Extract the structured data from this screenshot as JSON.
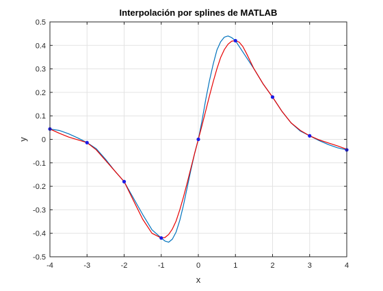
{
  "chart_data": {
    "type": "line",
    "title": "Interpolación por splines de MATLAB",
    "xlabel": "x",
    "ylabel": "y",
    "xlim": [
      -4,
      4
    ],
    "ylim": [
      -0.5,
      0.5
    ],
    "grid": true,
    "x_ticks": [
      -4,
      -3,
      -2,
      -1,
      0,
      1,
      2,
      3,
      4
    ],
    "x_tick_labels": [
      "-4",
      "-3",
      "-2",
      "-1",
      "0",
      "1",
      "2",
      "3",
      "4"
    ],
    "y_ticks": [
      -0.5,
      -0.4,
      -0.3,
      -0.2,
      -0.1,
      0,
      0.1,
      0.2,
      0.3,
      0.4,
      0.5
    ],
    "y_tick_labels": [
      "-0.5",
      "-0.4",
      "-0.3",
      "-0.2",
      "-0.1",
      "0",
      "0.1",
      "0.2",
      "0.3",
      "0.4",
      "0.5"
    ],
    "series": [
      {
        "kind": "line",
        "color": "#0072BD",
        "x": [
          -4,
          -3.75,
          -3.5,
          -3.25,
          -3,
          -2.75,
          -2.5,
          -2.25,
          -2,
          -1.75,
          -1.5,
          -1.25,
          -1,
          -0.9,
          -0.8,
          -0.7,
          -0.6,
          -0.5,
          -0.4,
          -0.3,
          -0.2,
          -0.1,
          0,
          0.1,
          0.2,
          0.3,
          0.4,
          0.5,
          0.6,
          0.7,
          0.8,
          0.9,
          1,
          1.25,
          1.5,
          1.75,
          2,
          2.25,
          2.5,
          2.75,
          3,
          3.25,
          3.5,
          3.75,
          4
        ],
        "y": [
          0.044,
          0.038,
          0.024,
          0.006,
          -0.014,
          -0.04,
          -0.085,
          -0.135,
          -0.18,
          -0.25,
          -0.32,
          -0.385,
          -0.42,
          -0.433,
          -0.438,
          -0.425,
          -0.395,
          -0.345,
          -0.28,
          -0.205,
          -0.13,
          -0.06,
          0.0,
          0.08,
          0.17,
          0.25,
          0.32,
          0.38,
          0.415,
          0.435,
          0.44,
          0.433,
          0.42,
          0.36,
          0.3,
          0.235,
          0.18,
          0.12,
          0.07,
          0.035,
          0.015,
          -0.005,
          -0.022,
          -0.036,
          -0.045
        ]
      },
      {
        "kind": "line",
        "color": "#E60000",
        "x": [
          -4,
          -3.75,
          -3.5,
          -3.25,
          -3,
          -2.75,
          -2.5,
          -2.25,
          -2,
          -1.75,
          -1.5,
          -1.25,
          -1,
          -0.9,
          -0.8,
          -0.7,
          -0.6,
          -0.5,
          -0.4,
          -0.3,
          -0.2,
          -0.1,
          0,
          0.1,
          0.2,
          0.3,
          0.4,
          0.5,
          0.6,
          0.7,
          0.8,
          0.9,
          1,
          1.1,
          1.2,
          1.3,
          1.5,
          1.75,
          2,
          2.25,
          2.5,
          2.75,
          3,
          3.25,
          3.5,
          3.75,
          4
        ],
        "y": [
          0.044,
          0.026,
          0.01,
          -0.002,
          -0.014,
          -0.045,
          -0.09,
          -0.135,
          -0.18,
          -0.26,
          -0.34,
          -0.4,
          -0.42,
          -0.418,
          -0.405,
          -0.382,
          -0.348,
          -0.3,
          -0.245,
          -0.185,
          -0.122,
          -0.06,
          0.0,
          0.06,
          0.122,
          0.185,
          0.245,
          0.3,
          0.348,
          0.382,
          0.405,
          0.418,
          0.42,
          0.414,
          0.395,
          0.365,
          0.3,
          0.235,
          0.18,
          0.12,
          0.07,
          0.038,
          0.015,
          -0.002,
          -0.015,
          -0.028,
          -0.042
        ]
      },
      {
        "kind": "points",
        "color": "#1A1AE6",
        "x": [
          -4,
          -3,
          -2,
          -1,
          0,
          1,
          2,
          3,
          4
        ],
        "y": [
          0.044,
          -0.014,
          -0.18,
          -0.42,
          0.0,
          0.42,
          0.18,
          0.015,
          -0.045
        ]
      }
    ]
  }
}
